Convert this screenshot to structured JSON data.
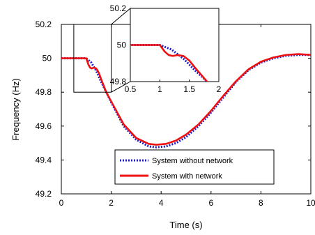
{
  "chart_data": {
    "type": "line",
    "xlabel": "Time (s)",
    "ylabel": "Frequency (Hz)",
    "xlim": [
      0,
      10
    ],
    "ylim": [
      49.2,
      50.2
    ],
    "xticks": [
      "0",
      "2",
      "4",
      "6",
      "8",
      "10"
    ],
    "yticks": [
      "49.2",
      "49.4",
      "49.6",
      "49.8",
      "50",
      "50.2"
    ],
    "grid": false,
    "legend_position": "bottom-right",
    "series": [
      {
        "name": "System without network",
        "color": "#1a1acc",
        "style": "dotted",
        "x": [
          0,
          1.0,
          1.2,
          1.4,
          1.6,
          1.8,
          2.0,
          2.5,
          3.0,
          3.5,
          3.8,
          4.2,
          4.6,
          5.0,
          5.5,
          6.0,
          6.5,
          7.0,
          7.5,
          8.0,
          8.5,
          9.0,
          9.5,
          10.0
        ],
        "values": [
          50.0,
          50.0,
          49.975,
          49.925,
          49.86,
          49.8,
          49.74,
          49.6,
          49.52,
          49.48,
          49.475,
          49.48,
          49.5,
          49.535,
          49.6,
          49.68,
          49.77,
          49.86,
          49.93,
          49.975,
          50.0,
          50.015,
          50.02,
          50.02
        ]
      },
      {
        "name": "System with network",
        "color": "#ee1111",
        "style": "solid",
        "x": [
          0,
          1.0,
          1.08,
          1.15,
          1.22,
          1.3,
          1.4,
          1.5,
          1.6,
          1.8,
          2.0,
          2.5,
          3.0,
          3.5,
          3.8,
          4.2,
          4.6,
          5.0,
          5.5,
          6.0,
          6.5,
          7.0,
          7.5,
          8.0,
          8.5,
          9.0,
          9.5,
          10.0
        ],
        "values": [
          50.0,
          50.0,
          49.965,
          49.945,
          49.94,
          49.945,
          49.94,
          49.915,
          49.875,
          49.8,
          49.745,
          49.61,
          49.53,
          49.495,
          49.49,
          49.495,
          49.515,
          49.55,
          49.61,
          49.69,
          49.78,
          49.865,
          49.935,
          49.98,
          50.005,
          50.02,
          50.025,
          50.02
        ]
      }
    ],
    "inset": {
      "xlim": [
        0.5,
        2
      ],
      "ylim": [
        49.8,
        50.2
      ],
      "xticks": [
        "0.5",
        "1",
        "1.5",
        "2"
      ],
      "yticks": [
        "49.8",
        "50",
        "50.2"
      ],
      "zoom_region": {
        "x": [
          0.5,
          2
        ],
        "y": [
          49.8,
          50.2
        ]
      }
    }
  }
}
